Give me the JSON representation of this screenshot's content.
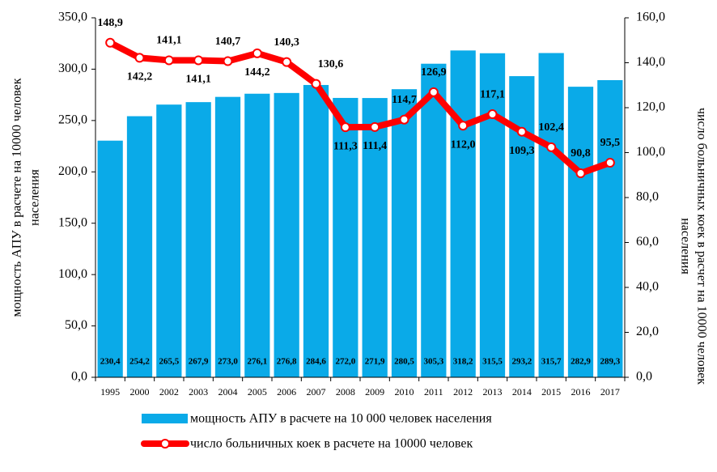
{
  "chart_data": {
    "type": "bar_line",
    "categories": [
      "1995",
      "2000",
      "2002",
      "2003",
      "2004",
      "2005",
      "2006",
      "2007",
      "2008",
      "2009",
      "2010",
      "2011",
      "2012",
      "2013",
      "2014",
      "2015",
      "2016",
      "2017"
    ],
    "series": [
      {
        "name": "мощность АПУ в расчете на 10 000 человек населения",
        "color": "#0aaae8",
        "type": "bar",
        "axis": "y",
        "values": [
          230.4,
          254.2,
          265.5,
          267.9,
          273.0,
          276.1,
          276.8,
          284.6,
          272.0,
          271.9,
          280.5,
          305.3,
          318.2,
          315.5,
          293.2,
          315.7,
          282.9,
          289.3
        ],
        "value_labels": [
          "230,4",
          "254,2",
          "265,5",
          "267,9",
          "273,0",
          "276,1",
          "276,8",
          "284,6",
          "272,0",
          "271,9",
          "280,5",
          "305,3",
          "318,2",
          "315,5",
          "293,2",
          "315,7",
          "282,9",
          "289,3"
        ]
      },
      {
        "name": "число больничных коек в расчете на 10000 человек",
        "color": "#ff0000",
        "type": "line",
        "axis": "y2",
        "values": [
          148.9,
          142.2,
          141.1,
          141.1,
          140.7,
          144.2,
          140.3,
          130.6,
          111.3,
          111.4,
          114.7,
          126.9,
          112.0,
          117.1,
          109.3,
          102.4,
          90.8,
          95.5
        ],
        "value_labels": [
          "148,9",
          "142,2",
          "141,1",
          "141,1",
          "140,7",
          "144,2",
          "140,3",
          "130,6",
          "111,3",
          "111,4",
          "114,7",
          "126,9",
          "112,0",
          "117,1",
          "109,3",
          "102,4",
          "90,8",
          "95,5"
        ]
      }
    ],
    "y_label": [
      "мощность АПУ в  расчете на 10000 человек",
      "населения"
    ],
    "y2_label": [
      "число больничных коек в расчет на 10000 человек",
      "населения"
    ],
    "ylim": [
      0,
      350
    ],
    "yticks": [
      {
        "value": 0,
        "label": "0,0"
      },
      {
        "value": 50,
        "label": "50,0"
      },
      {
        "value": 100,
        "label": "100,0"
      },
      {
        "value": 150,
        "label": "150,0"
      },
      {
        "value": 200,
        "label": "200,0"
      },
      {
        "value": 250,
        "label": "250,0"
      },
      {
        "value": 300,
        "label": "300,0"
      },
      {
        "value": 350,
        "label": "350,0"
      }
    ],
    "y2lim": [
      0,
      160
    ],
    "y2ticks": [
      {
        "value": 0,
        "label": "0,0"
      },
      {
        "value": 20,
        "label": "20,0"
      },
      {
        "value": 40,
        "label": "40,0"
      },
      {
        "value": 60,
        "label": "60,0"
      },
      {
        "value": 80,
        "label": "80,0"
      },
      {
        "value": 100,
        "label": "100,0"
      },
      {
        "value": 120,
        "label": "120,0"
      },
      {
        "value": 140,
        "label": "140,0"
      },
      {
        "value": 160,
        "label": "160,0"
      }
    ],
    "grid": false,
    "legend": "bottom"
  }
}
